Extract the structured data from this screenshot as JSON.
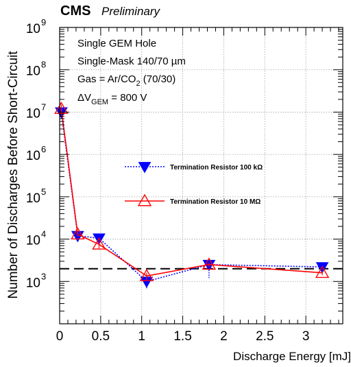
{
  "header": {
    "experiment": "CMS",
    "status": "Preliminary"
  },
  "annotations": {
    "line1": "Single GEM Hole",
    "line2": "Single-Mask 140/70 µm",
    "line3_main": "Gas = Ar/CO",
    "line3_sub": "2",
    "line3_tail": " (70/30)",
    "line4_delta": "ΔV",
    "line4_sub": "GEM",
    "line4_tail": " = 800 V"
  },
  "colors": {
    "series1": "#0000ff",
    "series2": "#ff0000",
    "reference_line": "#000000",
    "grid": "#a0a0a0"
  },
  "chart_data": {
    "type": "scatter",
    "xlabel": "Discharge Energy [mJ]",
    "ylabel": "Number of Discharges Before Short-Circuit",
    "xlim": [
      0,
      3.45
    ],
    "ylim": [
      100.0,
      1000000000.0
    ],
    "yscale": "log",
    "grid": true,
    "legend_position": "center-right",
    "x_ticks": [
      0,
      0.5,
      1,
      1.5,
      2,
      2.5,
      3
    ],
    "x_tick_labels": [
      "0",
      "0.5",
      "1",
      "1.5",
      "2",
      "2.5",
      "3"
    ],
    "y_ticks": [
      1000.0,
      10000.0,
      100000.0,
      1000000.0,
      10000000.0,
      100000000.0,
      1000000000.0
    ],
    "y_tick_labels": [
      {
        "base": "10",
        "exp": "3"
      },
      {
        "base": "10",
        "exp": "4"
      },
      {
        "base": "10",
        "exp": "5"
      },
      {
        "base": "10",
        "exp": "6"
      },
      {
        "base": "10",
        "exp": "7"
      },
      {
        "base": "10",
        "exp": "8"
      },
      {
        "base": "10",
        "exp": "9"
      }
    ],
    "reference_y": 2000,
    "series": [
      {
        "name": "Termination Resistor 100 kΩ",
        "marker": "triangle-down-filled",
        "line": "dotted",
        "x": [
          0.02,
          0.22,
          0.48,
          1.06,
          1.82,
          3.2
        ],
        "y": [
          10000000,
          12000,
          10500,
          1000,
          2500,
          2200
        ],
        "y_err_low": [
          2000000,
          1500,
          1500,
          350,
          1300,
          300
        ],
        "y_err_high": [
          2000000,
          1500,
          1500,
          250,
          700,
          300
        ]
      },
      {
        "name": "Termination Resistor 10 MΩ",
        "marker": "triangle-up-open",
        "line": "solid",
        "x": [
          0.02,
          0.22,
          0.48,
          1.06,
          1.82,
          3.2
        ],
        "y": [
          12000000,
          13000,
          7500,
          1350,
          2500,
          1600
        ],
        "y_err_low": [
          3000000,
          1500,
          1500,
          250,
          300,
          200
        ],
        "y_err_high": [
          3000000,
          1500,
          1500,
          250,
          300,
          200
        ]
      }
    ]
  }
}
